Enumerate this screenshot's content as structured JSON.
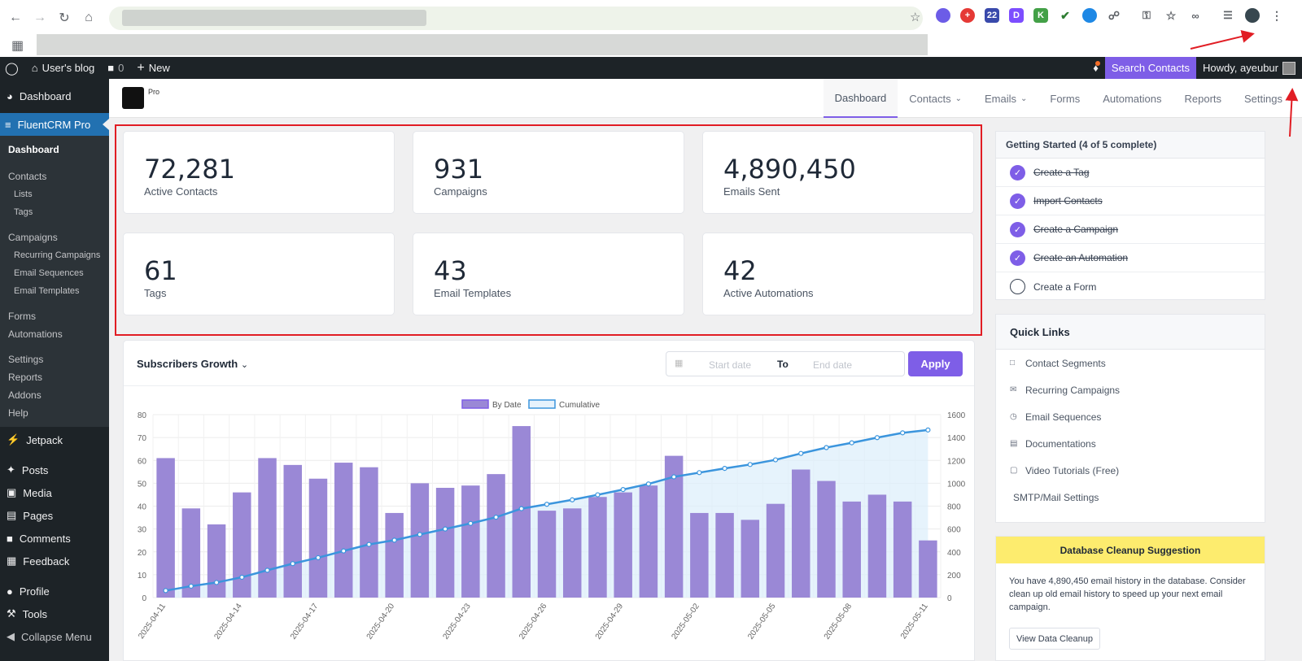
{
  "browser": {
    "extensions": [
      "flame-icon",
      "red-plus-icon",
      "badge-22-icon",
      "d-icon",
      "k-icon",
      "check-icon",
      "blue-circle-icon",
      "puzzle-icon"
    ],
    "ext_badge": "22"
  },
  "adminbar": {
    "site_name": "User's blog",
    "comments_count": "0",
    "new_label": "New",
    "search_label": "Search Contacts",
    "howdy": "Howdy, ayeubur"
  },
  "sidebar": {
    "dashboard": "Dashboard",
    "plugin": "FluentCRM Pro",
    "sub": {
      "dashboard": "Dashboard",
      "contacts": "Contacts",
      "lists": "Lists",
      "tags": "Tags",
      "campaigns": "Campaigns",
      "recurring": "Recurring Campaigns",
      "sequences": "Email Sequences",
      "templates": "Email Templates",
      "forms": "Forms",
      "automations": "Automations",
      "settings": "Settings",
      "reports": "Reports",
      "addons": "Addons",
      "help": "Help"
    },
    "menu": [
      "Jetpack",
      "Posts",
      "Media",
      "Pages",
      "Comments",
      "Feedback",
      "Profile",
      "Tools",
      "Collapse Menu"
    ]
  },
  "header": {
    "logo_suffix": "Pro",
    "tabs": [
      "Dashboard",
      "Contacts",
      "Emails",
      "Forms",
      "Automations",
      "Reports",
      "Settings"
    ]
  },
  "stats": [
    {
      "value": "72,281",
      "label": "Active Contacts"
    },
    {
      "value": "931",
      "label": "Campaigns"
    },
    {
      "value": "4,890,450",
      "label": "Emails Sent"
    },
    {
      "value": "61",
      "label": "Tags"
    },
    {
      "value": "43",
      "label": "Email Templates"
    },
    {
      "value": "42",
      "label": "Active Automations"
    }
  ],
  "chart_panel": {
    "title": "Subscribers Growth",
    "start_placeholder": "Start date",
    "to_label": "To",
    "end_placeholder": "End date",
    "apply_label": "Apply"
  },
  "chart_data": {
    "type": "bar",
    "legend": [
      "By Date",
      "Cumulative"
    ],
    "legend_position": "top",
    "x_ticks": [
      "2025-04-11",
      "2025-04-14",
      "2025-04-17",
      "2025-04-20",
      "2025-04-23",
      "2025-04-26",
      "2025-04-29",
      "2025-05-02",
      "2025-05-05",
      "2025-05-08",
      "2025-05-11"
    ],
    "y_left_ticks": [
      "0",
      "10",
      "20",
      "30",
      "40",
      "50",
      "60",
      "70",
      "80"
    ],
    "y_right_ticks": [
      "0",
      "200",
      "400",
      "600",
      "800",
      "1000",
      "1200",
      "1400",
      "1600"
    ],
    "ylim_left": [
      0,
      80
    ],
    "ylim_right": [
      0,
      1600
    ],
    "x": [
      "2025-04-11",
      "2025-04-12",
      "2025-04-13",
      "2025-04-14",
      "2025-04-15",
      "2025-04-16",
      "2025-04-17",
      "2025-04-18",
      "2025-04-19",
      "2025-04-20",
      "2025-04-21",
      "2025-04-22",
      "2025-04-23",
      "2025-04-24",
      "2025-04-25",
      "2025-04-26",
      "2025-04-27",
      "2025-04-28",
      "2025-04-29",
      "2025-04-30",
      "2025-05-01",
      "2025-05-02",
      "2025-05-03",
      "2025-05-04",
      "2025-05-05",
      "2025-05-06",
      "2025-05-07",
      "2025-05-08",
      "2025-05-09",
      "2025-05-10",
      "2025-05-11"
    ],
    "series": [
      {
        "name": "By Date",
        "type": "bar",
        "axis": "left",
        "color": "#9a88d6",
        "values": [
          61,
          39,
          32,
          46,
          61,
          58,
          52,
          59,
          57,
          37,
          50,
          48,
          49,
          54,
          75,
          38,
          39,
          44,
          46,
          49,
          62,
          37,
          37,
          34,
          41,
          56,
          51,
          42,
          45,
          42,
          25
        ]
      },
      {
        "name": "Cumulative",
        "type": "line",
        "axis": "right",
        "color": "#3b95dd",
        "values": [
          61,
          100,
          132,
          178,
          239,
          297,
          349,
          408,
          465,
          502,
          552,
          600,
          649,
          703,
          778,
          816,
          855,
          899,
          945,
          994,
          1056,
          1093,
          1130,
          1164,
          1205,
          1261,
          1312,
          1354,
          1399,
          1441,
          1466
        ]
      }
    ]
  },
  "getting_started": {
    "title": "Getting Started (4 of 5 complete)",
    "items": [
      {
        "label": "Create a Tag",
        "done": true
      },
      {
        "label": "Import Contacts",
        "done": true
      },
      {
        "label": "Create a Campaign",
        "done": true
      },
      {
        "label": "Create an Automation",
        "done": true
      },
      {
        "label": "Create a Form",
        "done": false
      }
    ]
  },
  "quick_links": {
    "title": "Quick Links",
    "items": [
      "Contact Segments",
      "Recurring Campaigns",
      "Email Sequences",
      "Documentations",
      "Video Tutorials (Free)",
      "SMTP/Mail Settings"
    ]
  },
  "db_cleanup": {
    "title": "Database Cleanup Suggestion",
    "text": "You have 4,890,450 email history in the database. Consider clean up old email history to speed up your next email campaign.",
    "button": "View Data Cleanup"
  },
  "colors": {
    "accent": "#7e5ee7",
    "wp_dark": "#1d2327",
    "wp_blue": "#2271b1",
    "annotation_red": "#e11d24"
  }
}
